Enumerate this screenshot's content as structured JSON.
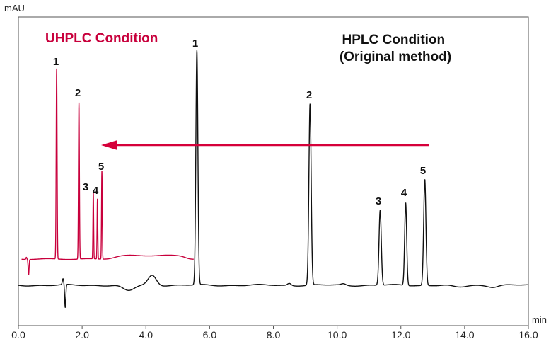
{
  "chart_data": {
    "type": "line",
    "xlabel": "min",
    "ylabel": "mAU",
    "xlim": [
      0,
      16
    ],
    "xticks": [
      "0.0",
      "2.0",
      "4.0",
      "6.0",
      "8.0",
      "10.0",
      "12.0",
      "14.0",
      "16.0"
    ],
    "grid": false,
    "arrow_color": "#d6003a",
    "series": [
      {
        "name": "UHPLC Condition",
        "color": "#c8003c",
        "x_range": [
          0.1,
          5.5
        ],
        "peaks": [
          {
            "label": "1",
            "x": 1.2
          },
          {
            "label": "2",
            "x": 1.9
          },
          {
            "label": "3",
            "x": 2.35
          },
          {
            "label": "4",
            "x": 2.48
          },
          {
            "label": "5",
            "x": 2.62
          }
        ]
      },
      {
        "name": "HPLC Condition\n(Original method)",
        "color": "#111111",
        "x_range": [
          0.0,
          16.0
        ],
        "peaks": [
          {
            "label": "1",
            "x": 5.6
          },
          {
            "label": "2",
            "x": 9.15
          },
          {
            "label": "3",
            "x": 11.35
          },
          {
            "label": "4",
            "x": 12.15
          },
          {
            "label": "5",
            "x": 12.75
          }
        ]
      }
    ]
  }
}
